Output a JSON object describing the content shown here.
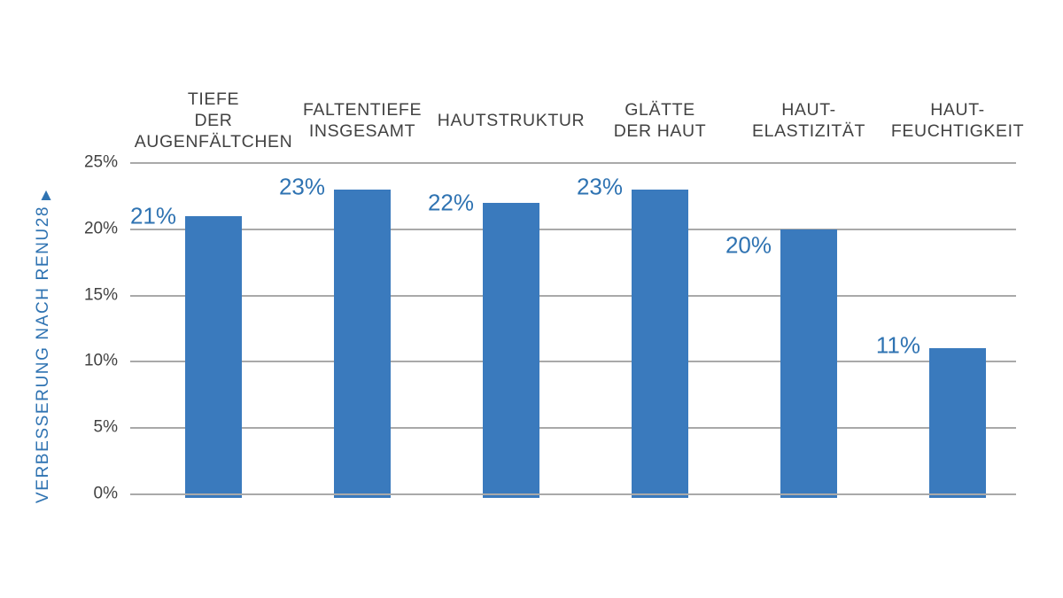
{
  "chart_data": {
    "type": "bar",
    "title": "",
    "categories": [
      "TIEFE\nDER\nAUGENFÄLTCHEN",
      "FALTENTIEFE\nINSGESAMT",
      "HAUTSTRUKTUR",
      "GLÄTTE\nDER HAUT",
      "HAUT-\nELASTIZITÄT",
      "HAUT-\nFEUCHTIGKEIT"
    ],
    "values": [
      21,
      23,
      22,
      23,
      20,
      11
    ],
    "value_labels": [
      "21%",
      "23%",
      "22%",
      "23%",
      "20%",
      "11%"
    ],
    "xlabel": "",
    "ylabel": "VERBESSERUNG NACH RENU28",
    "ylabel_arrow": "▲",
    "ylim": [
      0,
      25
    ],
    "ytick_labels": [
      "25%",
      "20%",
      "15%",
      "10%",
      "5%",
      "0%"
    ],
    "grid": true,
    "legend": false,
    "colors": {
      "bar": "#3a7abd",
      "value_label": "#2f73b2",
      "axis_text": "#424242",
      "gridline": "#a9a9a9",
      "background": "#ffffff"
    }
  }
}
